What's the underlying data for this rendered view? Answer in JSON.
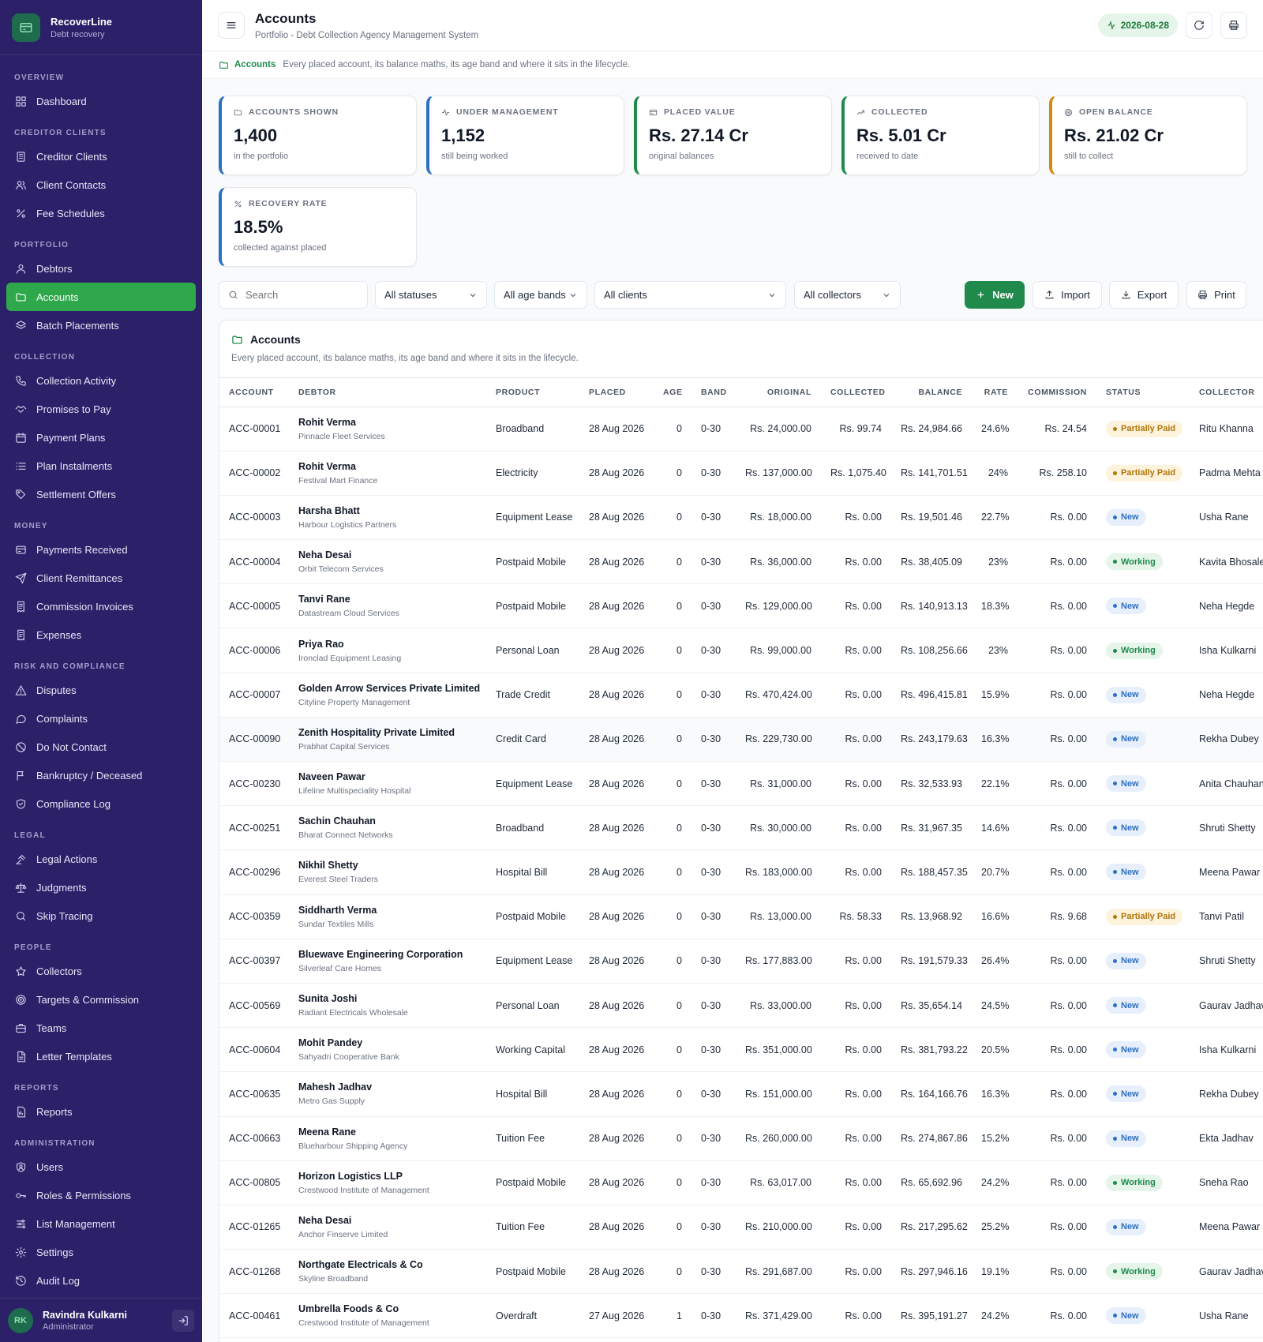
{
  "app": {
    "name": "RecoverLine",
    "subtitle": "Debt recovery"
  },
  "nav": [
    {
      "section": "OVERVIEW",
      "items": [
        {
          "label": "Dashboard",
          "icon": "grid-icon"
        }
      ]
    },
    {
      "section": "CREDITOR CLIENTS",
      "items": [
        {
          "label": "Creditor Clients",
          "icon": "building-icon"
        },
        {
          "label": "Client Contacts",
          "icon": "users-icon"
        },
        {
          "label": "Fee Schedules",
          "icon": "percent-icon"
        }
      ]
    },
    {
      "section": "PORTFOLIO",
      "items": [
        {
          "label": "Debtors",
          "icon": "user-icon"
        },
        {
          "label": "Accounts",
          "icon": "folder-icon",
          "active": true
        },
        {
          "label": "Batch Placements",
          "icon": "layers-icon"
        }
      ]
    },
    {
      "section": "COLLECTION",
      "items": [
        {
          "label": "Collection Activity",
          "icon": "phone-icon"
        },
        {
          "label": "Promises to Pay",
          "icon": "handshake-icon"
        },
        {
          "label": "Payment Plans",
          "icon": "calendar-icon"
        },
        {
          "label": "Plan Instalments",
          "icon": "list-icon"
        },
        {
          "label": "Settlement Offers",
          "icon": "tag-icon"
        }
      ]
    },
    {
      "section": "MONEY",
      "items": [
        {
          "label": "Payments Received",
          "icon": "wallet-icon"
        },
        {
          "label": "Client Remittances",
          "icon": "send-icon"
        },
        {
          "label": "Commission Invoices",
          "icon": "receipt-icon"
        },
        {
          "label": "Expenses",
          "icon": "receipt-icon"
        }
      ]
    },
    {
      "section": "RISK AND COMPLIANCE",
      "items": [
        {
          "label": "Disputes",
          "icon": "alert-triangle-icon"
        },
        {
          "label": "Complaints",
          "icon": "message-icon"
        },
        {
          "label": "Do Not Contact",
          "icon": "ban-icon"
        },
        {
          "label": "Bankruptcy / Deceased",
          "icon": "flag-icon"
        },
        {
          "label": "Compliance Log",
          "icon": "shield-icon"
        }
      ]
    },
    {
      "section": "LEGAL",
      "items": [
        {
          "label": "Legal Actions",
          "icon": "gavel-icon"
        },
        {
          "label": "Judgments",
          "icon": "scale-icon"
        },
        {
          "label": "Skip Tracing",
          "icon": "search-icon"
        }
      ]
    },
    {
      "section": "PEOPLE",
      "items": [
        {
          "label": "Collectors",
          "icon": "star-icon"
        },
        {
          "label": "Targets & Commission",
          "icon": "target-icon"
        },
        {
          "label": "Teams",
          "icon": "briefcase-icon"
        },
        {
          "label": "Letter Templates",
          "icon": "file-icon"
        }
      ]
    },
    {
      "section": "REPORTS",
      "items": [
        {
          "label": "Reports",
          "icon": "report-icon"
        }
      ]
    },
    {
      "section": "ADMINISTRATION",
      "items": [
        {
          "label": "Users",
          "icon": "user-shield-icon"
        },
        {
          "label": "Roles & Permissions",
          "icon": "key-icon"
        },
        {
          "label": "List Management",
          "icon": "sliders-icon"
        },
        {
          "label": "Settings",
          "icon": "gear-icon"
        },
        {
          "label": "Audit Log",
          "icon": "history-icon"
        }
      ]
    }
  ],
  "user": {
    "initials": "RK",
    "name": "Ravindra Kulkarni",
    "role": "Administrator"
  },
  "header": {
    "title": "Accounts",
    "subtitle": "Portfolio - Debt Collection Agency Management System",
    "date": "2026-08-28"
  },
  "breadcrumb": {
    "link": "Accounts",
    "description": "Every placed account, its balance maths, its age band and where it sits in the lifecycle."
  },
  "stats": [
    {
      "label": "ACCOUNTS SHOWN",
      "value": "1,400",
      "sub": "in the portfolio",
      "icon": "folder-icon",
      "color": "#2d6fc2"
    },
    {
      "label": "UNDER MANAGEMENT",
      "value": "1,152",
      "sub": "still being worked",
      "icon": "activity-icon",
      "color": "#2d6fc2"
    },
    {
      "label": "PLACED VALUE",
      "value": "Rs. 27.14 Cr",
      "sub": "original balances",
      "icon": "wallet-icon",
      "color": "#1f8a4c"
    },
    {
      "label": "COLLECTED",
      "value": "Rs. 5.01 Cr",
      "sub": "received to date",
      "icon": "trending-up-icon",
      "color": "#1f8a4c"
    },
    {
      "label": "OPEN BALANCE",
      "value": "Rs. 21.02 Cr",
      "sub": "still to collect",
      "icon": "target-icon",
      "color": "#d68a0c"
    },
    {
      "label": "RECOVERY RATE",
      "value": "18.5%",
      "sub": "collected against placed",
      "icon": "percent-icon",
      "color": "#2d6fc2"
    }
  ],
  "filters": {
    "search_placeholder": "Search",
    "status": "All statuses",
    "age_band": "All age bands",
    "client": "All clients",
    "collector": "All collectors"
  },
  "actions": {
    "new": "New",
    "import": "Import",
    "export": "Export",
    "print": "Print"
  },
  "table": {
    "title": "Accounts",
    "subtitle": "Every placed account, its balance maths, its age band and where it sits in the lifecycle.",
    "columns": [
      "ACCOUNT",
      "DEBTOR",
      "PRODUCT",
      "PLACED",
      "AGE",
      "BAND",
      "ORIGINAL",
      "COLLECTED",
      "BALANCE",
      "RATE",
      "COMMISSION",
      "STATUS",
      "COLLECTOR"
    ],
    "rows": [
      {
        "account": "ACC-00001",
        "debtor": "Rohit Verma",
        "client": "Pinnacle Fleet Services",
        "product": "Broadband",
        "placed": "28 Aug 2026",
        "age": "0",
        "band": "0-30",
        "original": "Rs. 24,000.00",
        "collected": "Rs. 99.74",
        "balance": "Rs. 24,984.66",
        "rate": "24.6%",
        "commission": "Rs. 24.54",
        "status": "Partially Paid",
        "collector": "Ritu Khanna"
      },
      {
        "account": "ACC-00002",
        "debtor": "Rohit Verma",
        "client": "Festival Mart Finance",
        "product": "Electricity",
        "placed": "28 Aug 2026",
        "age": "0",
        "band": "0-30",
        "original": "Rs. 137,000.00",
        "collected": "Rs. 1,075.40",
        "balance": "Rs. 141,701.51",
        "rate": "24%",
        "commission": "Rs. 258.10",
        "status": "Partially Paid",
        "collector": "Padma Mehta"
      },
      {
        "account": "ACC-00003",
        "debtor": "Harsha Bhatt",
        "client": "Harbour Logistics Partners",
        "product": "Equipment Lease",
        "placed": "28 Aug 2026",
        "age": "0",
        "band": "0-30",
        "original": "Rs. 18,000.00",
        "collected": "Rs. 0.00",
        "balance": "Rs. 19,501.46",
        "rate": "22.7%",
        "commission": "Rs. 0.00",
        "status": "New",
        "collector": "Usha Rane"
      },
      {
        "account": "ACC-00004",
        "debtor": "Neha Desai",
        "client": "Orbit Telecom Services",
        "product": "Postpaid Mobile",
        "placed": "28 Aug 2026",
        "age": "0",
        "band": "0-30",
        "original": "Rs. 36,000.00",
        "collected": "Rs. 0.00",
        "balance": "Rs. 38,405.09",
        "rate": "23%",
        "commission": "Rs. 0.00",
        "status": "Working",
        "collector": "Kavita Bhosale"
      },
      {
        "account": "ACC-00005",
        "debtor": "Tanvi Rane",
        "client": "Datastream Cloud Services",
        "product": "Postpaid Mobile",
        "placed": "28 Aug 2026",
        "age": "0",
        "band": "0-30",
        "original": "Rs. 129,000.00",
        "collected": "Rs. 0.00",
        "balance": "Rs. 140,913.13",
        "rate": "18.3%",
        "commission": "Rs. 0.00",
        "status": "New",
        "collector": "Neha Hegde"
      },
      {
        "account": "ACC-00006",
        "debtor": "Priya Rao",
        "client": "Ironclad Equipment Leasing",
        "product": "Personal Loan",
        "placed": "28 Aug 2026",
        "age": "0",
        "band": "0-30",
        "original": "Rs. 99,000.00",
        "collected": "Rs. 0.00",
        "balance": "Rs. 108,256.66",
        "rate": "23%",
        "commission": "Rs. 0.00",
        "status": "Working",
        "collector": "Isha Kulkarni"
      },
      {
        "account": "ACC-00007",
        "debtor": "Golden Arrow Services Private Limited",
        "client": "Cityline Property Management",
        "product": "Trade Credit",
        "placed": "28 Aug 2026",
        "age": "0",
        "band": "0-30",
        "original": "Rs. 470,424.00",
        "collected": "Rs. 0.00",
        "balance": "Rs. 496,415.81",
        "rate": "15.9%",
        "commission": "Rs. 0.00",
        "status": "New",
        "collector": "Neha Hegde"
      },
      {
        "account": "ACC-00090",
        "debtor": "Zenith Hospitality Private Limited",
        "client": "Prabhat Capital Services",
        "product": "Credit Card",
        "placed": "28 Aug 2026",
        "age": "0",
        "band": "0-30",
        "original": "Rs. 229,730.00",
        "collected": "Rs. 0.00",
        "balance": "Rs. 243,179.63",
        "rate": "16.3%",
        "commission": "Rs. 0.00",
        "status": "New",
        "collector": "Rekha Dubey",
        "highlight": true
      },
      {
        "account": "ACC-00230",
        "debtor": "Naveen Pawar",
        "client": "Lifeline Multispeciality Hospital",
        "product": "Equipment Lease",
        "placed": "28 Aug 2026",
        "age": "0",
        "band": "0-30",
        "original": "Rs. 31,000.00",
        "collected": "Rs. 0.00",
        "balance": "Rs. 32,533.93",
        "rate": "22.1%",
        "commission": "Rs. 0.00",
        "status": "New",
        "collector": "Anita Chauhan"
      },
      {
        "account": "ACC-00251",
        "debtor": "Sachin Chauhan",
        "client": "Bharat Connect Networks",
        "product": "Broadband",
        "placed": "28 Aug 2026",
        "age": "0",
        "band": "0-30",
        "original": "Rs. 30,000.00",
        "collected": "Rs. 0.00",
        "balance": "Rs. 31,967.35",
        "rate": "14.6%",
        "commission": "Rs. 0.00",
        "status": "New",
        "collector": "Shruti Shetty"
      },
      {
        "account": "ACC-00296",
        "debtor": "Nikhil Shetty",
        "client": "Everest Steel Traders",
        "product": "Hospital Bill",
        "placed": "28 Aug 2026",
        "age": "0",
        "band": "0-30",
        "original": "Rs. 183,000.00",
        "collected": "Rs. 0.00",
        "balance": "Rs. 188,457.35",
        "rate": "20.7%",
        "commission": "Rs. 0.00",
        "status": "New",
        "collector": "Meena Pawar"
      },
      {
        "account": "ACC-00359",
        "debtor": "Siddharth Verma",
        "client": "Sundar Textiles Mills",
        "product": "Postpaid Mobile",
        "placed": "28 Aug 2026",
        "age": "0",
        "band": "0-30",
        "original": "Rs. 13,000.00",
        "collected": "Rs. 58.33",
        "balance": "Rs. 13,968.92",
        "rate": "16.6%",
        "commission": "Rs. 9.68",
        "status": "Partially Paid",
        "collector": "Tanvi Patil"
      },
      {
        "account": "ACC-00397",
        "debtor": "Bluewave Engineering Corporation",
        "client": "Silverleaf Care Homes",
        "product": "Equipment Lease",
        "placed": "28 Aug 2026",
        "age": "0",
        "band": "0-30",
        "original": "Rs. 177,883.00",
        "collected": "Rs. 0.00",
        "balance": "Rs. 191,579.33",
        "rate": "26.4%",
        "commission": "Rs. 0.00",
        "status": "New",
        "collector": "Shruti Shetty"
      },
      {
        "account": "ACC-00569",
        "debtor": "Sunita Joshi",
        "client": "Radiant Electricals Wholesale",
        "product": "Personal Loan",
        "placed": "28 Aug 2026",
        "age": "0",
        "band": "0-30",
        "original": "Rs. 33,000.00",
        "collected": "Rs. 0.00",
        "balance": "Rs. 35,654.14",
        "rate": "24.5%",
        "commission": "Rs. 0.00",
        "status": "New",
        "collector": "Gaurav Jadhav"
      },
      {
        "account": "ACC-00604",
        "debtor": "Mohit Pandey",
        "client": "Sahyadri Cooperative Bank",
        "product": "Working Capital",
        "placed": "28 Aug 2026",
        "age": "0",
        "band": "0-30",
        "original": "Rs. 351,000.00",
        "collected": "Rs. 0.00",
        "balance": "Rs. 381,793.22",
        "rate": "20.5%",
        "commission": "Rs. 0.00",
        "status": "New",
        "collector": "Isha Kulkarni"
      },
      {
        "account": "ACC-00635",
        "debtor": "Mahesh Jadhav",
        "client": "Metro Gas Supply",
        "product": "Hospital Bill",
        "placed": "28 Aug 2026",
        "age": "0",
        "band": "0-30",
        "original": "Rs. 151,000.00",
        "collected": "Rs. 0.00",
        "balance": "Rs. 164,166.76",
        "rate": "16.3%",
        "commission": "Rs. 0.00",
        "status": "New",
        "collector": "Rekha Dubey"
      },
      {
        "account": "ACC-00663",
        "debtor": "Meena Rane",
        "client": "Blueharbour Shipping Agency",
        "product": "Tuition Fee",
        "placed": "28 Aug 2026",
        "age": "0",
        "band": "0-30",
        "original": "Rs. 260,000.00",
        "collected": "Rs. 0.00",
        "balance": "Rs. 274,867.86",
        "rate": "15.2%",
        "commission": "Rs. 0.00",
        "status": "New",
        "collector": "Ekta Jadhav"
      },
      {
        "account": "ACC-00805",
        "debtor": "Horizon Logistics LLP",
        "client": "Crestwood Institute of Management",
        "product": "Postpaid Mobile",
        "placed": "28 Aug 2026",
        "age": "0",
        "band": "0-30",
        "original": "Rs. 63,017.00",
        "collected": "Rs. 0.00",
        "balance": "Rs. 65,692.96",
        "rate": "24.2%",
        "commission": "Rs. 0.00",
        "status": "Working",
        "collector": "Sneha Rao"
      },
      {
        "account": "ACC-01265",
        "debtor": "Neha Desai",
        "client": "Anchor Finserve Limited",
        "product": "Tuition Fee",
        "placed": "28 Aug 2026",
        "age": "0",
        "band": "0-30",
        "original": "Rs. 210,000.00",
        "collected": "Rs. 0.00",
        "balance": "Rs. 217,295.62",
        "rate": "25.2%",
        "commission": "Rs. 0.00",
        "status": "New",
        "collector": "Meena Pawar"
      },
      {
        "account": "ACC-01268",
        "debtor": "Northgate Electricals & Co",
        "client": "Skyline Broadband",
        "product": "Postpaid Mobile",
        "placed": "28 Aug 2026",
        "age": "0",
        "band": "0-30",
        "original": "Rs. 291,687.00",
        "collected": "Rs. 0.00",
        "balance": "Rs. 297,946.16",
        "rate": "19.1%",
        "commission": "Rs. 0.00",
        "status": "Working",
        "collector": "Gaurav Jadhav"
      },
      {
        "account": "ACC-00461",
        "debtor": "Umbrella Foods & Co",
        "client": "Crestwood Institute of Management",
        "product": "Overdraft",
        "placed": "27 Aug 2026",
        "age": "1",
        "band": "0-30",
        "original": "Rs. 371,429.00",
        "collected": "Rs. 0.00",
        "balance": "Rs. 395,191.27",
        "rate": "24.2%",
        "commission": "Rs. 0.00",
        "status": "New",
        "collector": "Usha Rane"
      }
    ]
  }
}
